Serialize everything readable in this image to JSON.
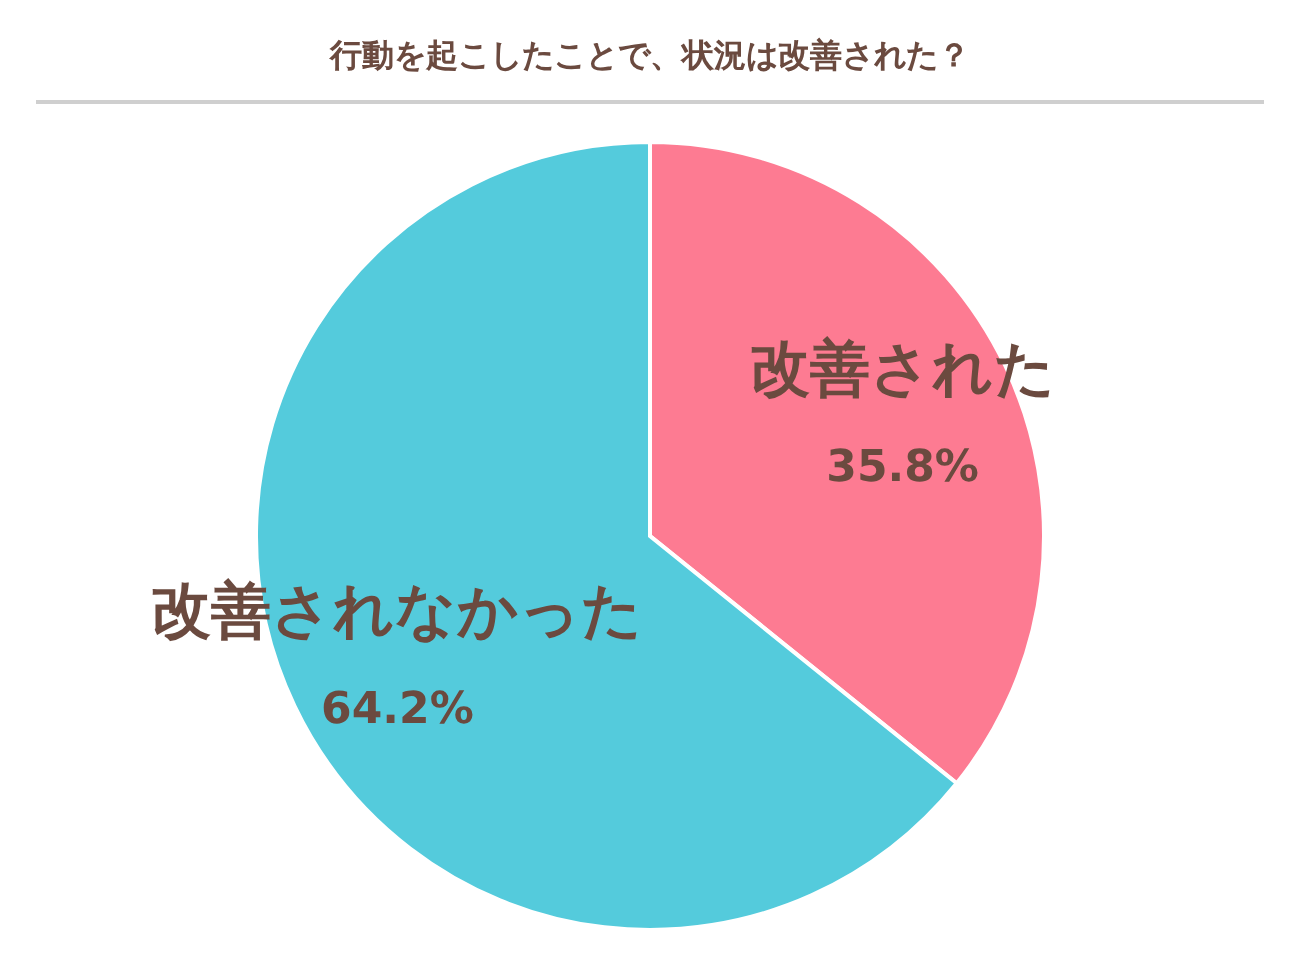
{
  "chart_data": {
    "type": "pie",
    "title": "行動を起こしたことで、状況は改善された？",
    "categories": [
      "改善された",
      "改善されなかった"
    ],
    "values": [
      35.8,
      64.2
    ],
    "value_labels": [
      "35.8%",
      "64.2%"
    ],
    "colors": [
      "#fd7b92",
      "#54cbdc"
    ]
  }
}
